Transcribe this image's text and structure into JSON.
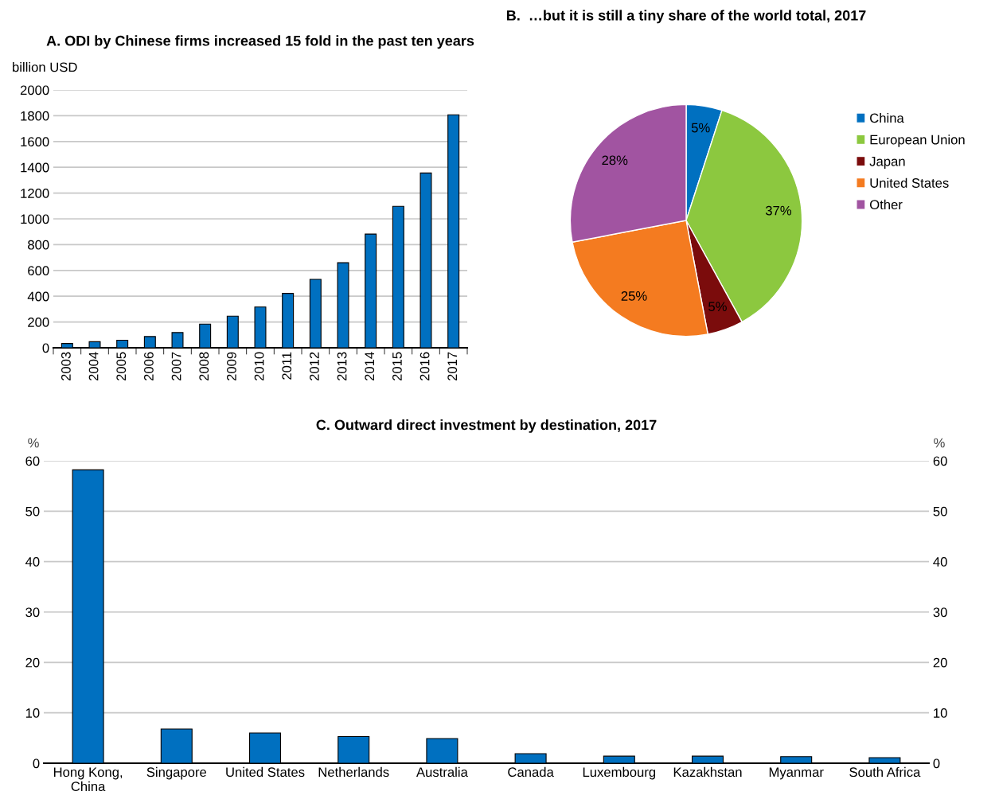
{
  "chart_data": [
    {
      "type": "bar",
      "title": "A. ODI by Chinese firms increased 15 fold in the past ten years",
      "ylabel": "billion USD",
      "categories": [
        "2003",
        "2004",
        "2005",
        "2006",
        "2007",
        "2008",
        "2009",
        "2010",
        "2011",
        "2012",
        "2013",
        "2014",
        "2015",
        "2016",
        "2017"
      ],
      "values": [
        33,
        47,
        59,
        87,
        118,
        184,
        245,
        316,
        422,
        531,
        660,
        882,
        1097,
        1356,
        1807
      ],
      "color": "#0070c0",
      "ylim": [
        0,
        2000
      ],
      "yticks": [
        0,
        200,
        400,
        600,
        800,
        1000,
        1200,
        1400,
        1600,
        1800,
        2000
      ],
      "grid": "y",
      "legend": false
    },
    {
      "type": "pie",
      "title": "B.  …but it is still a tiny share of the world total, 2017",
      "categories": [
        "China",
        "European Union",
        "Japan",
        "United States",
        "Other"
      ],
      "values": [
        5,
        37,
        5,
        25,
        28
      ],
      "colors": [
        "#0070c0",
        "#8cc83f",
        "#7b0c0c",
        "#f47b20",
        "#a154a1"
      ],
      "value_labels": [
        "5%",
        "37%",
        "5%",
        "25%",
        "28%"
      ],
      "legend": "right"
    },
    {
      "type": "bar",
      "title": "C. Outward direct investment by destination, 2017",
      "ylabel": "%",
      "y2label": "%",
      "categories": [
        "Hong Kong,\nChina",
        "Singapore",
        "United States",
        "Netherlands",
        "Australia",
        "Canada",
        "Luxembourg",
        "Kazakhstan",
        "Myanmar",
        "South Africa"
      ],
      "values": [
        58.2,
        6.8,
        6.0,
        5.3,
        4.9,
        1.9,
        1.4,
        1.4,
        1.3,
        1.1
      ],
      "color": "#0070c0",
      "ylim": [
        0,
        60
      ],
      "yticks": [
        0,
        10,
        20,
        30,
        40,
        50,
        60
      ],
      "y2lim": [
        0,
        60
      ],
      "y2ticks": [
        0,
        10,
        20,
        30,
        40,
        50,
        60
      ],
      "grid": "y",
      "legend": false
    }
  ]
}
